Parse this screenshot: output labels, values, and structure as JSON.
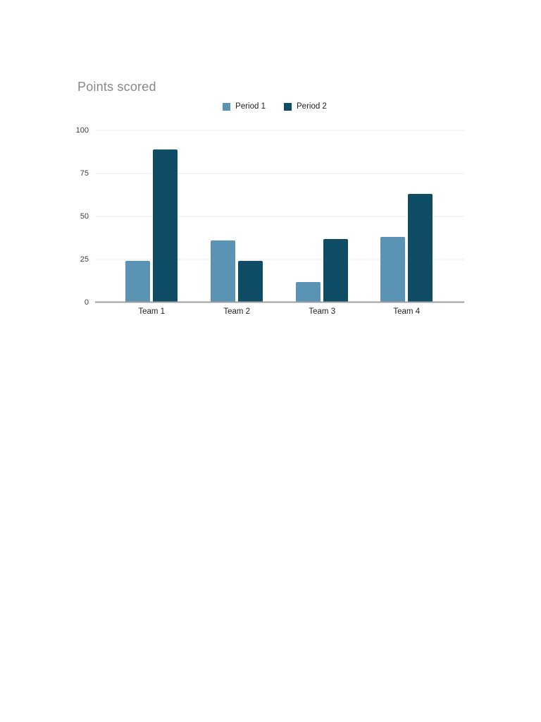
{
  "page": {
    "background": "#ffffff"
  },
  "chart_data": {
    "type": "bar",
    "title": "Points scored",
    "categories": [
      "Team 1",
      "Team 2",
      "Team 3",
      "Team 4"
    ],
    "series": [
      {
        "name": "Period 1",
        "color": "#5b93b4",
        "values": [
          24,
          36,
          12,
          38
        ]
      },
      {
        "name": "Period 2",
        "color": "#0f4d67",
        "values": [
          89,
          24,
          37,
          63
        ]
      }
    ],
    "xlabel": "",
    "ylabel": "",
    "ylim": [
      0,
      100
    ],
    "yticks": [
      0,
      25,
      50,
      75,
      100
    ],
    "grid": true,
    "legend_position": "top-center",
    "title_color": "#878787",
    "gridline_color": "#e8e8e8",
    "baseline_color": "#9e9e9e",
    "tick_label_color": "#3c4043",
    "category_label_color": "#1f1f1f",
    "group_centers_pct": [
      15.3,
      38.4,
      61.5,
      84.4
    ]
  }
}
